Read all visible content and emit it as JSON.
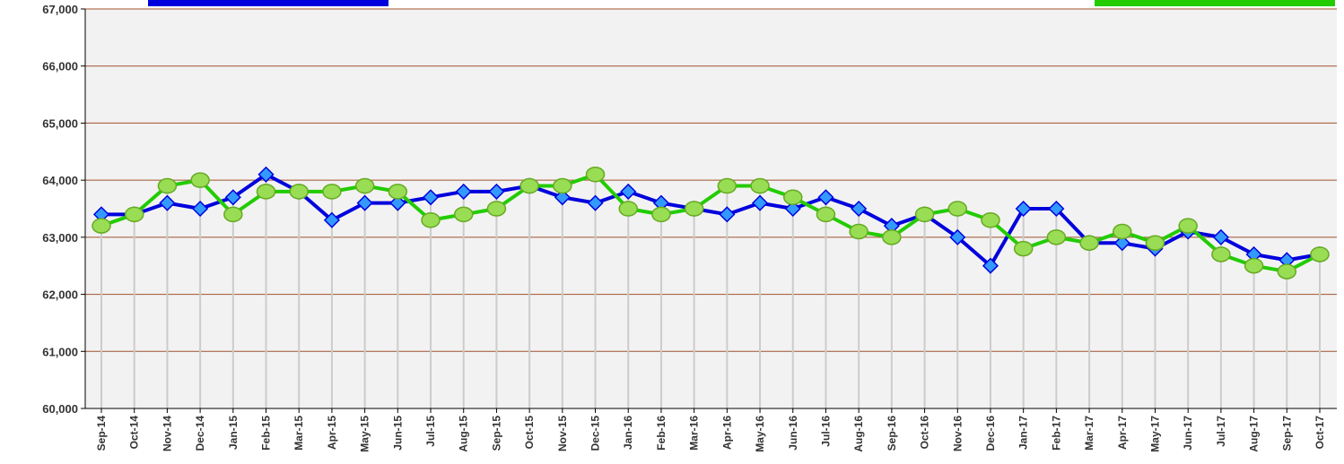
{
  "chart_data": {
    "type": "line",
    "categories": [
      "Sep-14",
      "Oct-14",
      "Nov-14",
      "Dec-14",
      "Jan-15",
      "Feb-15",
      "Mar-15",
      "Apr-15",
      "May-15",
      "Jun-15",
      "Jul-15",
      "Aug-15",
      "Sep-15",
      "Oct-15",
      "Nov-15",
      "Dec-15",
      "Jan-16",
      "Feb-16",
      "Mar-16",
      "Apr-16",
      "May-16",
      "Jun-16",
      "Jul-16",
      "Aug-16",
      "Sep-16",
      "Oct-16",
      "Nov-16",
      "Dec-16",
      "Jan-17",
      "Feb-17",
      "Mar-17",
      "Apr-17",
      "May-17",
      "Jun-17",
      "Jul-17",
      "Aug-17",
      "Sep-17",
      "Oct-17"
    ],
    "series": [
      {
        "color": "#0000dd",
        "marker": "diamond",
        "marker_color": "#3399ff",
        "values": [
          63400,
          63400,
          63600,
          63500,
          63700,
          64100,
          63800,
          63300,
          63600,
          63600,
          63700,
          63800,
          63800,
          63900,
          63700,
          63600,
          63800,
          63600,
          63500,
          63400,
          63600,
          63500,
          63700,
          63500,
          63200,
          63400,
          63000,
          62500,
          63500,
          63500,
          62900,
          62900,
          62800,
          63100,
          63000,
          62700,
          62600,
          62700
        ]
      },
      {
        "color": "#22cc00",
        "marker": "circle",
        "marker_color": "#99dd55",
        "values": [
          63200,
          63400,
          63900,
          64000,
          63400,
          63800,
          63800,
          63800,
          63900,
          63800,
          63300,
          63400,
          63500,
          63900,
          63900,
          64100,
          63500,
          63400,
          63500,
          63900,
          63900,
          63700,
          63400,
          63100,
          63000,
          63400,
          63500,
          63300,
          62800,
          63000,
          62900,
          63100,
          62900,
          63200,
          62700,
          62500,
          62400,
          62700
        ]
      }
    ],
    "ylim": [
      60000,
      67000
    ],
    "yticks": [
      {
        "value": 60000,
        "label": "60,000"
      },
      {
        "value": 61000,
        "label": "61,000"
      },
      {
        "value": 62000,
        "label": "62,000"
      },
      {
        "value": 63000,
        "label": "63,000"
      },
      {
        "value": 64000,
        "label": "64,000"
      },
      {
        "value": 65000,
        "label": "65,000"
      },
      {
        "value": 66000,
        "label": "66,000"
      },
      {
        "value": 67000,
        "label": "67,000"
      }
    ],
    "grid": true
  }
}
